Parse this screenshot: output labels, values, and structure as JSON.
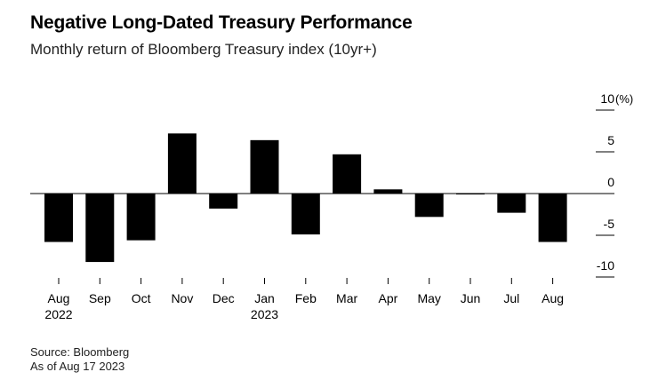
{
  "header": {
    "title": "Negative Long-Dated Treasury Performance",
    "subtitle": "Monthly return of Bloomberg Treasury index (10yr+)"
  },
  "footer": {
    "source": "Source: Bloomberg",
    "as_of": "As of Aug 17 2023"
  },
  "chart_data": {
    "type": "bar",
    "title": "Negative Long-Dated Treasury Performance",
    "subtitle": "Monthly return of Bloomberg Treasury index (10yr+)",
    "categories": [
      "Aug",
      "Sep",
      "Oct",
      "Nov",
      "Dec",
      "Jan",
      "Feb",
      "Mar",
      "Apr",
      "May",
      "Jun",
      "Jul",
      "Aug"
    ],
    "year_labels": [
      "2022",
      "",
      "",
      "",
      "",
      "2023",
      "",
      "",
      "",
      "",
      "",
      "",
      ""
    ],
    "values": [
      -5.8,
      -8.2,
      -5.6,
      7.2,
      -1.8,
      6.4,
      -4.9,
      4.7,
      0.5,
      -2.8,
      -0.1,
      -2.3,
      -5.8
    ],
    "ylim": [
      -10,
      10
    ],
    "yticks": [
      10,
      5,
      0,
      -5,
      -10
    ],
    "ytick_labels": [
      "10",
      "5",
      "0",
      "-5",
      "-10"
    ],
    "y_unit": "(%)",
    "bar_color": "#000000",
    "grid": false,
    "axis_position": "right"
  }
}
